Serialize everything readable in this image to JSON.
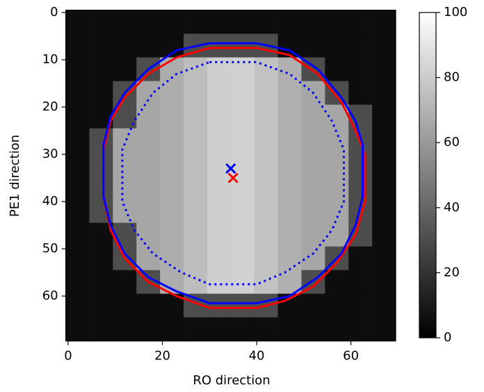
{
  "chart_data": {
    "type": "heatmap",
    "xlabel": "RO direction",
    "ylabel": "PE1 direction",
    "xlim": [
      -0.5,
      69.5
    ],
    "ylim": [
      69.5,
      -0.5
    ],
    "xticks": [
      0,
      20,
      40,
      60
    ],
    "yticks": [
      0,
      10,
      20,
      30,
      40,
      50,
      60
    ],
    "colormap": "gray",
    "clim": [
      0,
      100
    ],
    "cticks": [
      0,
      20,
      40,
      60,
      80,
      100
    ],
    "z": [
      [
        5,
        5,
        5,
        5,
        5,
        5,
        5,
        5,
        5,
        5,
        5,
        5,
        5,
        5
      ],
      [
        5,
        5,
        5,
        5,
        5,
        30,
        30,
        30,
        30,
        5,
        5,
        5,
        5,
        5
      ],
      [
        5,
        5,
        5,
        30,
        68,
        74,
        81,
        82,
        76,
        69,
        30,
        5,
        5,
        5
      ],
      [
        5,
        5,
        30,
        65,
        68,
        74,
        81,
        82,
        76,
        69,
        65,
        30,
        5,
        5
      ],
      [
        5,
        5,
        30,
        65,
        68,
        74,
        81,
        82,
        76,
        69,
        65,
        65,
        30,
        5
      ],
      [
        5,
        30,
        65,
        65,
        68,
        74,
        81,
        82,
        76,
        69,
        65,
        65,
        30,
        5
      ],
      [
        5,
        30,
        65,
        65,
        68,
        74,
        81,
        82,
        76,
        69,
        65,
        65,
        30,
        5
      ],
      [
        5,
        30,
        65,
        65,
        68,
        74,
        81,
        82,
        76,
        69,
        65,
        65,
        30,
        5
      ],
      [
        5,
        30,
        65,
        65,
        68,
        74,
        81,
        82,
        76,
        69,
        65,
        65,
        30,
        5
      ],
      [
        5,
        5,
        30,
        65,
        68,
        74,
        81,
        82,
        76,
        69,
        65,
        65,
        30,
        5
      ],
      [
        5,
        5,
        30,
        65,
        68,
        74,
        81,
        82,
        76,
        69,
        65,
        30,
        5,
        5
      ],
      [
        5,
        5,
        5,
        30,
        68,
        74,
        81,
        82,
        76,
        69,
        30,
        5,
        5,
        5
      ],
      [
        5,
        5,
        5,
        5,
        5,
        30,
        30,
        30,
        30,
        5,
        5,
        5,
        5,
        5
      ],
      [
        5,
        5,
        5,
        5,
        5,
        5,
        5,
        5,
        5,
        5,
        5,
        5,
        5,
        5
      ]
    ],
    "lines": [
      {
        "color": "#ff0000",
        "dash": "solid",
        "x": [
          30,
          40,
          47,
          53,
          58,
          61,
          63,
          63,
          61,
          57,
          52,
          46,
          40,
          30,
          23,
          17,
          12,
          9,
          7.5,
          7.5,
          9,
          12,
          17,
          23,
          30
        ],
        "y": [
          7.5,
          7.5,
          9,
          13,
          19,
          25,
          30,
          40,
          47,
          53,
          58,
          61,
          62.5,
          62.5,
          60,
          57,
          52,
          46,
          39,
          29,
          23,
          18,
          13,
          9.5,
          7.5
        ]
      },
      {
        "color": "#0000ff",
        "dash": "solid",
        "x": [
          30,
          40,
          47,
          53,
          58,
          61,
          62.5,
          62.5,
          61,
          58,
          53,
          47,
          40,
          30,
          23,
          17,
          12,
          9,
          7.5,
          7.5,
          9,
          12,
          17,
          23,
          30
        ],
        "y": [
          6.5,
          6.5,
          8,
          12,
          18,
          23,
          28,
          39,
          45,
          51,
          56,
          60,
          61.5,
          61.5,
          59,
          56,
          51,
          45,
          39,
          28,
          22,
          17,
          12,
          8,
          6.5
        ]
      },
      {
        "color": "#0000ff",
        "dash": "dotted",
        "x": [
          30,
          40,
          47,
          52,
          56,
          58.5,
          58.5,
          56,
          52,
          46,
          40,
          30,
          24,
          18,
          14,
          11.5,
          11.5,
          14,
          18,
          23,
          30
        ],
        "y": [
          10.5,
          10.5,
          13,
          17,
          23,
          29,
          40,
          46,
          51,
          55,
          57.5,
          57.5,
          55,
          51,
          46,
          40,
          29,
          23,
          17,
          13,
          10.5
        ]
      }
    ],
    "markers": [
      {
        "color": "#0000ff",
        "x": 34.5,
        "y": 33
      },
      {
        "color": "#ff0000",
        "x": 35,
        "y": 35
      }
    ]
  }
}
